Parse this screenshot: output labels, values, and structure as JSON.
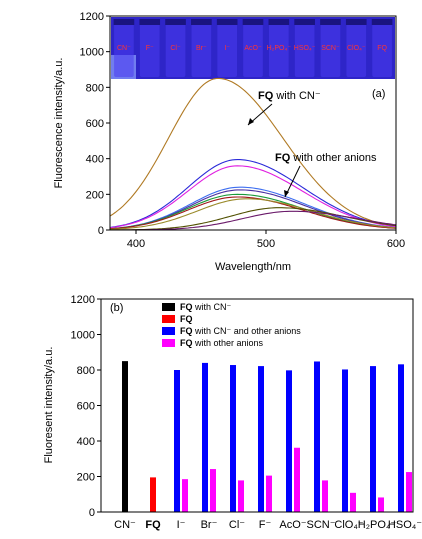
{
  "chart_data": [
    {
      "type": "line",
      "panel_label": "(a)",
      "xlabel": "Wavelength/nm",
      "ylabel": "Fluorescence intensity/a.u.",
      "xlim": [
        380,
        600
      ],
      "ylim": [
        0,
        1200
      ],
      "x_ticks": [
        400,
        500,
        600
      ],
      "y_ticks": [
        0,
        200,
        400,
        600,
        800,
        1000,
        1200
      ],
      "grid": false,
      "legend": "none",
      "annotations": [
        {
          "bold": "FQ",
          "text": " with CN⁻"
        },
        {
          "bold": "FQ",
          "text": " with other anions"
        }
      ],
      "inset_vial_labels": [
        "CN⁻",
        "F⁻",
        "Cl⁻",
        "Br⁻",
        "I⁻",
        "AcO⁻",
        "H₂PO₄⁻",
        "HSO₄⁻",
        "SCN⁻",
        "ClO₄⁻",
        "FQ"
      ],
      "series": [
        {
          "peak_x": 463,
          "peak_y": 850,
          "color": "#b07a24"
        },
        {
          "peak_x": 478,
          "peak_y": 395,
          "color": "#2a2ad8"
        },
        {
          "peak_x": 478,
          "peak_y": 360,
          "color": "#e020e0"
        },
        {
          "peak_x": 480,
          "peak_y": 240,
          "color": "#3d6ef0"
        },
        {
          "peak_x": 480,
          "peak_y": 225,
          "color": "#4a30a0"
        },
        {
          "peak_x": 478,
          "peak_y": 200,
          "color": "#1a9a3a"
        },
        {
          "peak_x": 478,
          "peak_y": 185,
          "color": "#a01818"
        },
        {
          "peak_x": 485,
          "peak_y": 175,
          "color": "#9a8a2a"
        },
        {
          "peak_x": 510,
          "peak_y": 125,
          "color": "#505000"
        },
        {
          "peak_x": 520,
          "peak_y": 105,
          "color": "#6a1a6a"
        }
      ],
      "inset_colors": {
        "background": "#2e25c8",
        "vial": "#4a3cf0",
        "label": "#ff3333"
      }
    },
    {
      "type": "bar",
      "panel_label": "(b)",
      "xlabel": "",
      "ylabel": "Fluoresent intensity/a.u.",
      "ylim": [
        0,
        1200
      ],
      "y_ticks": [
        0,
        200,
        400,
        600,
        800,
        1000,
        1200
      ],
      "grid": false,
      "legend": "top-left",
      "categories": [
        "CN⁻",
        "FQ",
        "I⁻",
        "Br⁻",
        "Cl⁻",
        "F⁻",
        "AcO⁻",
        "SCN⁻",
        "ClO₄⁻",
        "H₂PO₄⁻",
        "HSO₄⁻"
      ],
      "category_bold": [
        false,
        true,
        false,
        false,
        false,
        false,
        false,
        false,
        false,
        false,
        false
      ],
      "series": [
        {
          "name": "FQ with CN⁻",
          "name_bold": "FQ",
          "name_rest": " with CN⁻",
          "color": "#000000",
          "values": [
            850,
            null,
            null,
            null,
            null,
            null,
            null,
            null,
            null,
            null,
            null
          ]
        },
        {
          "name": "FQ",
          "name_bold": "FQ",
          "name_rest": "",
          "color": "#ff0000",
          "values": [
            null,
            195,
            null,
            null,
            null,
            null,
            null,
            null,
            null,
            null,
            null
          ]
        },
        {
          "name": "FQ with CN⁻ and other anions",
          "name_bold": "FQ",
          "name_rest": " with CN⁻ and other anions",
          "color": "#0000ff",
          "values": [
            null,
            null,
            800,
            840,
            828,
            822,
            798,
            848,
            803,
            822,
            832
          ]
        },
        {
          "name": "FQ with other anions",
          "name_bold": "FQ",
          "name_rest": " with other anions",
          "color": "#ff00ff",
          "values": [
            null,
            null,
            185,
            242,
            178,
            205,
            362,
            178,
            108,
            82,
            225
          ]
        }
      ]
    }
  ]
}
